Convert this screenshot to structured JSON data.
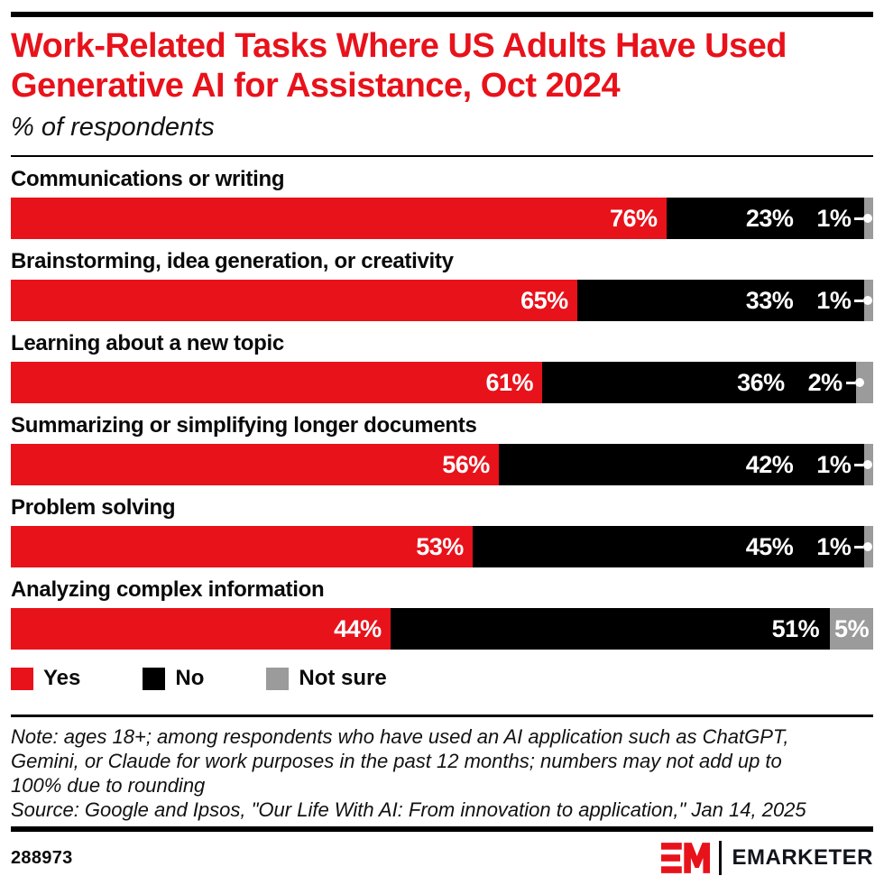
{
  "header": {
    "title": "Work-Related Tasks Where US Adults Have Used Generative AI for Assistance, Oct 2024",
    "title_lines": [
      "Work-Related Tasks Where US Adults Have Used",
      "Generative AI for Assistance, Oct 2024"
    ],
    "subtitle": "% of respondents"
  },
  "chart_data": {
    "type": "bar",
    "orientation": "horizontal",
    "stacked": true,
    "unit": "%",
    "xlim": [
      0,
      100
    ],
    "grid": false,
    "legend_position": "bottom",
    "value_labels": "inside-end",
    "categories": [
      "Communications or writing",
      "Brainstorming, idea generation, or creativity",
      "Learning about a new topic",
      "Summarizing or simplifying longer documents",
      "Problem solving",
      "Analyzing complex information"
    ],
    "series": [
      {
        "name": "Yes",
        "color": "#e8121b",
        "values": [
          76,
          65,
          61,
          56,
          53,
          44
        ]
      },
      {
        "name": "No",
        "color": "#000000",
        "values": [
          23,
          33,
          36,
          42,
          45,
          51
        ]
      },
      {
        "name": "Not sure",
        "color": "#9b9b9b",
        "values": [
          1,
          1,
          2,
          1,
          1,
          5
        ]
      }
    ]
  },
  "legend": {
    "items": [
      {
        "label": "Yes",
        "color": "#e8121b"
      },
      {
        "label": "No",
        "color": "#000000"
      },
      {
        "label": "Not sure",
        "color": "#9b9b9b"
      }
    ]
  },
  "footnote": {
    "note_lines": [
      "Note: ages 18+; among respondents who have used an AI application such as ChatGPT,",
      "Gemini, or Claude for work purposes in the past 12 months; numbers may not add up to",
      "100% due to rounding"
    ],
    "source": "Source: Google and Ipsos, \"Our Life With AI: From innovation to application,\" Jan 14, 2025"
  },
  "footer": {
    "chart_id": "288973",
    "brand": "EMARKETER"
  },
  "colors": {
    "accent_red": "#e8121b",
    "bar_black": "#000000",
    "bar_gray": "#9b9b9b",
    "background": "#ffffff"
  }
}
